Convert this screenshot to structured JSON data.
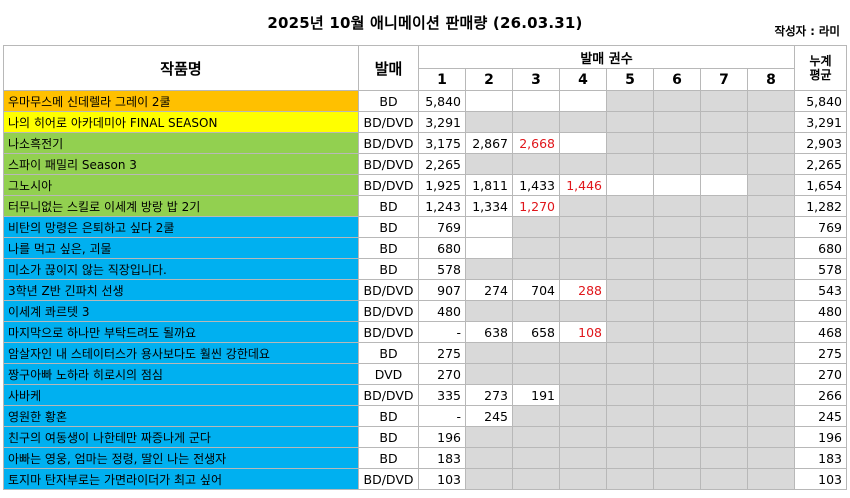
{
  "title": "2025년 10월 애니메이션 판매량 (26.03.31)",
  "author": "작성자 : 라미",
  "headers": {
    "title": "작품명",
    "format": "발매",
    "volumes_group": "발매 권수",
    "volume_numbers": [
      "1",
      "2",
      "3",
      "4",
      "5",
      "6",
      "7",
      "8"
    ],
    "average_line1": "누계",
    "average_line2": "평균"
  },
  "colors": {
    "orange": "#ffc000",
    "yellow": "#ffff00",
    "green": "#92d050",
    "blue": "#00b0f0",
    "gray": "#d9d9d9",
    "red_text": "#e0161b"
  },
  "rows": [
    {
      "title": "우마무스메 신데렐라 그레이 2쿨",
      "format": "BD",
      "color": "orange",
      "vols": [
        "5,840",
        "",
        "",
        "",
        null,
        null,
        null,
        null
      ],
      "red": [],
      "avg": "5,840"
    },
    {
      "title": "나의 히어로 아카데미아 FINAL SEASON",
      "format": "BD/DVD",
      "color": "yellow",
      "vols": [
        "3,291",
        null,
        null,
        null,
        null,
        null,
        null,
        null
      ],
      "red": [],
      "avg": "3,291"
    },
    {
      "title": "나소흑전기",
      "format": "BD/DVD",
      "color": "green",
      "vols": [
        "3,175",
        "2,867",
        "2,668",
        "",
        null,
        null,
        null,
        null
      ],
      "red": [
        2
      ],
      "avg": "2,903"
    },
    {
      "title": "스파이 패밀리 Season 3",
      "format": "BD/DVD",
      "color": "green",
      "vols": [
        "2,265",
        null,
        null,
        null,
        null,
        null,
        null,
        null
      ],
      "red": [],
      "avg": "2,265"
    },
    {
      "title": "그노시아",
      "format": "BD/DVD",
      "color": "green",
      "vols": [
        "1,925",
        "1,811",
        "1,433",
        "1,446",
        "",
        "",
        "",
        null
      ],
      "red": [
        3
      ],
      "avg": "1,654"
    },
    {
      "title": "터무니없는 스킬로 이세계 방랑 밥 2기",
      "format": "BD",
      "color": "green",
      "vols": [
        "1,243",
        "1,334",
        "1,270",
        null,
        null,
        null,
        null,
        null
      ],
      "red": [
        2
      ],
      "avg": "1,282"
    },
    {
      "title": "비탄의 망령은 은퇴하고 싶다 2쿨",
      "format": "BD",
      "color": "blue",
      "vols": [
        "769",
        "",
        null,
        null,
        null,
        null,
        null,
        null
      ],
      "red": [],
      "avg": "769"
    },
    {
      "title": "나를 먹고 싶은, 괴물",
      "format": "BD",
      "color": "blue",
      "vols": [
        "680",
        "",
        null,
        null,
        null,
        null,
        null,
        null
      ],
      "red": [],
      "avg": "680"
    },
    {
      "title": "미소가 끊이지 않는 직장입니다.",
      "format": "BD",
      "color": "blue",
      "vols": [
        "578",
        null,
        null,
        null,
        null,
        null,
        null,
        null
      ],
      "red": [],
      "avg": "578"
    },
    {
      "title": "3학년 Z반 긴파치 선생",
      "format": "BD/DVD",
      "color": "blue",
      "vols": [
        "907",
        "274",
        "704",
        "288",
        null,
        null,
        null,
        null
      ],
      "red": [
        3
      ],
      "avg": "543"
    },
    {
      "title": "이세계 콰르텟 3",
      "format": "BD/DVD",
      "color": "blue",
      "vols": [
        "480",
        null,
        null,
        null,
        null,
        null,
        null,
        null
      ],
      "red": [],
      "avg": "480"
    },
    {
      "title": "마지막으로 하나만 부탁드려도 될까요",
      "format": "BD/DVD",
      "color": "blue",
      "vols": [
        "-",
        "638",
        "658",
        "108",
        null,
        null,
        null,
        null
      ],
      "red": [
        3
      ],
      "avg": "468"
    },
    {
      "title": "암살자인 내 스테이터스가 용사보다도 훨씬 강한데요",
      "format": "BD",
      "color": "blue",
      "vols": [
        "275",
        null,
        null,
        null,
        null,
        null,
        null,
        null
      ],
      "red": [],
      "avg": "275"
    },
    {
      "title": "짱구아빠 노하라 히로시의 점심",
      "format": "DVD",
      "color": "blue",
      "vols": [
        "270",
        null,
        null,
        null,
        null,
        null,
        null,
        null
      ],
      "red": [],
      "avg": "270"
    },
    {
      "title": "사바케",
      "format": "BD/DVD",
      "color": "blue",
      "vols": [
        "335",
        "273",
        "191",
        null,
        null,
        null,
        null,
        null
      ],
      "red": [],
      "avg": "266"
    },
    {
      "title": "영원한 황혼",
      "format": "BD",
      "color": "blue",
      "vols": [
        "-",
        "245",
        null,
        null,
        null,
        null,
        null,
        null
      ],
      "red": [],
      "avg": "245"
    },
    {
      "title": "친구의 여동생이 나한테만 짜증나게 군다",
      "format": "BD",
      "color": "blue",
      "vols": [
        "196",
        null,
        null,
        null,
        null,
        null,
        null,
        null
      ],
      "red": [],
      "avg": "196"
    },
    {
      "title": "아빠는 영웅, 엄마는 정령, 딸인 나는 전생자",
      "format": "BD",
      "color": "blue",
      "vols": [
        "183",
        null,
        null,
        null,
        null,
        null,
        null,
        null
      ],
      "red": [],
      "avg": "183"
    },
    {
      "title": "토지마 탄자부로는 가면라이더가 최고 싶어",
      "format": "BD/DVD",
      "color": "blue",
      "vols": [
        "103",
        null,
        null,
        null,
        null,
        null,
        null,
        null
      ],
      "red": [],
      "avg": "103"
    }
  ]
}
